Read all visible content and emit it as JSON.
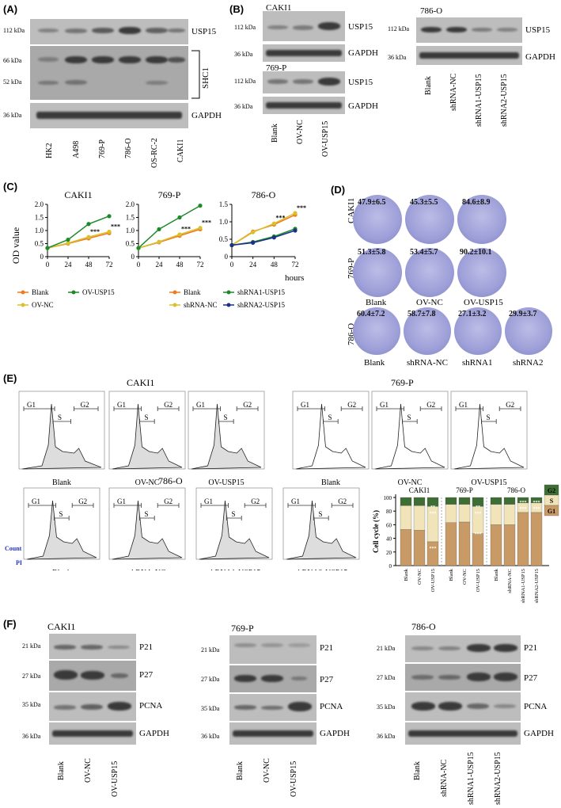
{
  "panels": {
    "a": "(A)",
    "b": "(B)",
    "c": "(C)",
    "d": "(D)",
    "e": "(E)",
    "f": "(F)"
  },
  "kda": {
    "k112": "112 kDa",
    "k66": "66 kDa",
    "k52": "52 kDa",
    "k36": "36 kDa",
    "k21": "21 kDa",
    "k27": "27 kDa",
    "k35": "35 kDa"
  },
  "proteins": {
    "usp15": "USP15",
    "shc1": "SHC1",
    "gapdh": "GAPDH",
    "p21": "P21",
    "p27": "P27",
    "pcna": "PCNA"
  },
  "cells": {
    "caki1": "CAKI1",
    "p769": "769-P",
    "o786": "786-O",
    "hk2": "HK2",
    "a498": "A498",
    "osrc2": "OS-RC-2"
  },
  "groups": {
    "blank": "Blank",
    "ovnc": "OV-NC",
    "ovusp15": "OV-USP15",
    "shnc": "shRNA-NC",
    "sh1usp": "shRNA1-USP15",
    "sh2usp": "shRNA2-USP15",
    "sh1": "shRNA1",
    "sh2": "shRNA2"
  },
  "c_axis": {
    "ylabel": "OD value",
    "xlabel": "hours",
    "xticks": [
      "0",
      "24",
      "48",
      "72"
    ],
    "yticks": [
      "0",
      "0.5",
      "1.0",
      "1.5",
      "2.0"
    ]
  },
  "colony": {
    "caki1": [
      "47.9±6.5",
      "45.3±5.5",
      "84.6±8.9"
    ],
    "p769": [
      "51.3±5.8",
      "53.4±5.7",
      "90.2±10.1"
    ],
    "o786": [
      "60.4±7.2",
      "58.7±7.8",
      "27.1±3.2",
      "29.9±3.7"
    ]
  },
  "flow": {
    "g1": "G1",
    "s": "S",
    "g2": "G2",
    "count": "Count",
    "pi": "PI",
    "ylabel": "Cell cycle (%)",
    "yticks": [
      "0",
      "20",
      "40",
      "60",
      "80",
      "100"
    ],
    "legend": [
      "G2",
      "S",
      "G1"
    ],
    "sig2": "**",
    "sig3": "***"
  },
  "colors": {
    "orange": "#f07a1e",
    "yellow": "#d8c12a",
    "green": "#1d8a2a",
    "navy": "#1b2f8c",
    "g1": "#c89a66",
    "s": "#f0e4b8",
    "g2": "#3f6e35"
  },
  "chart_data": [
    {
      "type": "line",
      "title": "CAKI1",
      "xlabel": "hours",
      "ylabel": "OD value",
      "x": [
        0,
        24,
        48,
        72
      ],
      "ylim": [
        0,
        2.0
      ],
      "series": [
        {
          "name": "Blank",
          "color": "orange",
          "values": [
            0.33,
            0.5,
            0.7,
            0.9
          ]
        },
        {
          "name": "OV-NC",
          "color": "yellow",
          "values": [
            0.33,
            0.52,
            0.75,
            0.95
          ]
        },
        {
          "name": "OV-USP15",
          "color": "green",
          "values": [
            0.33,
            0.65,
            1.25,
            1.55
          ]
        }
      ]
    },
    {
      "type": "line",
      "title": "769-P",
      "xlabel": "hours",
      "ylabel": "OD value",
      "x": [
        0,
        24,
        48,
        72
      ],
      "ylim": [
        0,
        2.0
      ],
      "series": [
        {
          "name": "Blank",
          "color": "orange",
          "values": [
            0.33,
            0.55,
            0.8,
            1.05
          ]
        },
        {
          "name": "OV-NC",
          "color": "yellow",
          "values": [
            0.33,
            0.57,
            0.85,
            1.1
          ]
        },
        {
          "name": "OV-USP15",
          "color": "green",
          "values": [
            0.33,
            1.05,
            1.5,
            1.95
          ]
        }
      ]
    },
    {
      "type": "line",
      "title": "786-O",
      "xlabel": "hours",
      "ylabel": "OD value",
      "x": [
        0,
        24,
        48,
        72
      ],
      "ylim": [
        0,
        1.5
      ],
      "series": [
        {
          "name": "Blank",
          "color": "orange",
          "values": [
            0.33,
            0.72,
            0.92,
            1.2
          ]
        },
        {
          "name": "shRNA-NC",
          "color": "yellow",
          "values": [
            0.33,
            0.7,
            0.95,
            1.25
          ]
        },
        {
          "name": "shRNA1-USP15",
          "color": "green",
          "values": [
            0.33,
            0.42,
            0.58,
            0.8
          ]
        },
        {
          "name": "shRNA2-USP15",
          "color": "navy",
          "values": [
            0.33,
            0.4,
            0.55,
            0.75
          ]
        }
      ]
    },
    {
      "type": "bar",
      "title": "Cell cycle (%)",
      "ylabel": "Cell cycle (%)",
      "ylim": [
        0,
        100
      ],
      "categories": [
        "Blank",
        "OV-NC",
        "OV-USP15",
        "Blank",
        "OV-NC",
        "OV-USP15",
        "Blank",
        "shRNA-NC",
        "shRNA1-USP15",
        "shRNA2-USP15"
      ],
      "groups": [
        "CAKI1",
        "769-P",
        "786-O"
      ],
      "series": [
        {
          "name": "G1",
          "values": [
            53,
            52,
            35,
            63,
            64,
            47,
            60,
            60,
            78,
            78
          ]
        },
        {
          "name": "S",
          "values": [
            35,
            36,
            52,
            27,
            26,
            40,
            30,
            30,
            14,
            14
          ]
        },
        {
          "name": "G2",
          "values": [
            12,
            12,
            13,
            10,
            10,
            13,
            10,
            10,
            8,
            8
          ]
        }
      ]
    }
  ]
}
